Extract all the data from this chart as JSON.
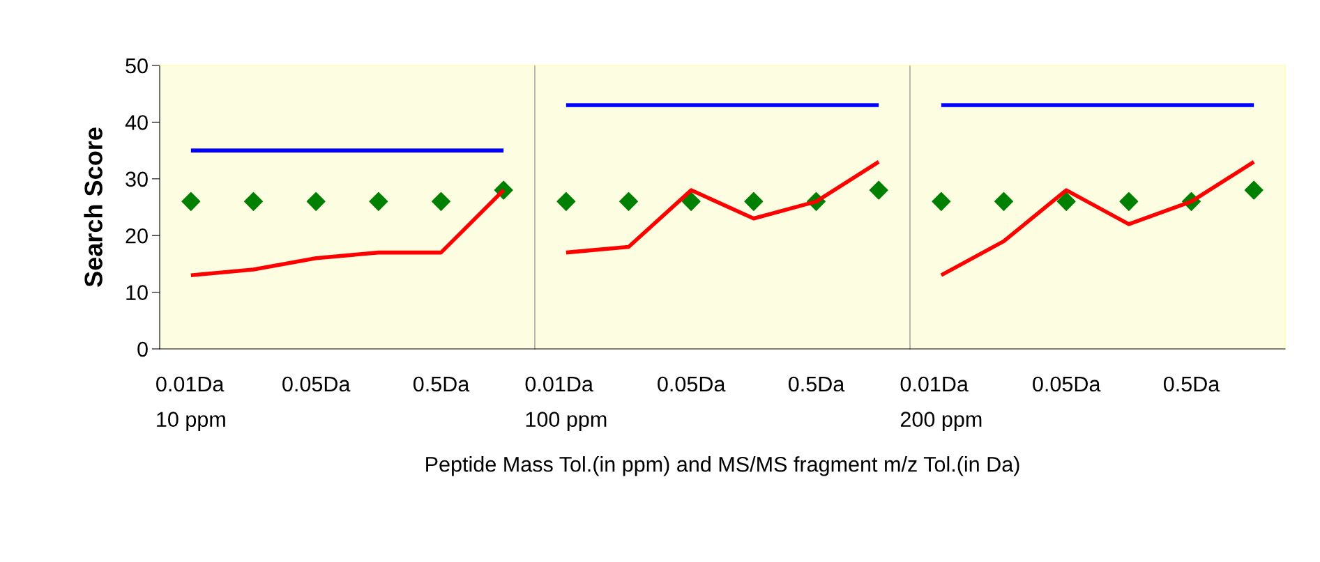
{
  "chart_data": [
    {
      "type": "line",
      "ylabel": "Search Score",
      "categories": [
        "0.01Da\n10 ppm",
        null,
        "0.05Da",
        null,
        "0.5Da",
        null
      ],
      "ylim": [
        0,
        50
      ],
      "yticks": [
        0,
        10,
        20,
        30,
        40,
        50
      ],
      "grid": false,
      "legend": false,
      "marker": "none",
      "line_style": "solid",
      "series": [
        {
          "color": "#0000ff",
          "values": [
            35,
            35,
            35,
            35,
            35,
            35
          ]
        },
        {
          "color": "#ff0000",
          "values": [
            13,
            14,
            16,
            17,
            17,
            28
          ]
        },
        {
          "type": "scatter",
          "marker": "diamond",
          "color": "#008000",
          "values": [
            26,
            26,
            26,
            26,
            26,
            28
          ]
        }
      ]
    },
    {
      "type": "line",
      "xlabel": "Peptide Mass Tol.(in ppm) and MS/MS fragment m/z Tol.(in Da)",
      "categories": [
        "0.01Da\n100 ppm",
        null,
        "0.05Da",
        null,
        "0.5Da",
        null
      ],
      "ylim": [
        0,
        50
      ],
      "tick_labels": "x",
      "grid": false,
      "legend": false,
      "marker": "none",
      "line_style": "solid",
      "series": [
        {
          "color": "#0000ff",
          "values": [
            43,
            43,
            43,
            43,
            43,
            43
          ]
        },
        {
          "color": "#ff0000",
          "values": [
            17,
            18,
            28,
            23,
            26,
            33
          ]
        },
        {
          "type": "scatter",
          "marker": "diamond",
          "color": "#008000",
          "values": [
            26,
            26,
            26,
            26,
            26,
            28
          ]
        }
      ]
    },
    {
      "type": "line",
      "categories": [
        "0.01Da\n200 ppm",
        null,
        "0.05Da",
        null,
        "0.5Da",
        null
      ],
      "ylim": [
        0,
        50
      ],
      "tick_labels": "x",
      "grid": false,
      "legend": false,
      "marker": "none",
      "line_style": "solid",
      "series": [
        {
          "color": "#0000ff",
          "values": [
            43,
            43,
            43,
            43,
            43,
            43
          ]
        },
        {
          "color": "#ff0000",
          "values": [
            13,
            19,
            28,
            22,
            26,
            33
          ]
        },
        {
          "type": "scatter",
          "marker": "diamond",
          "color": "#008000",
          "values": [
            26,
            26,
            26,
            26,
            26,
            28
          ]
        }
      ]
    }
  ]
}
